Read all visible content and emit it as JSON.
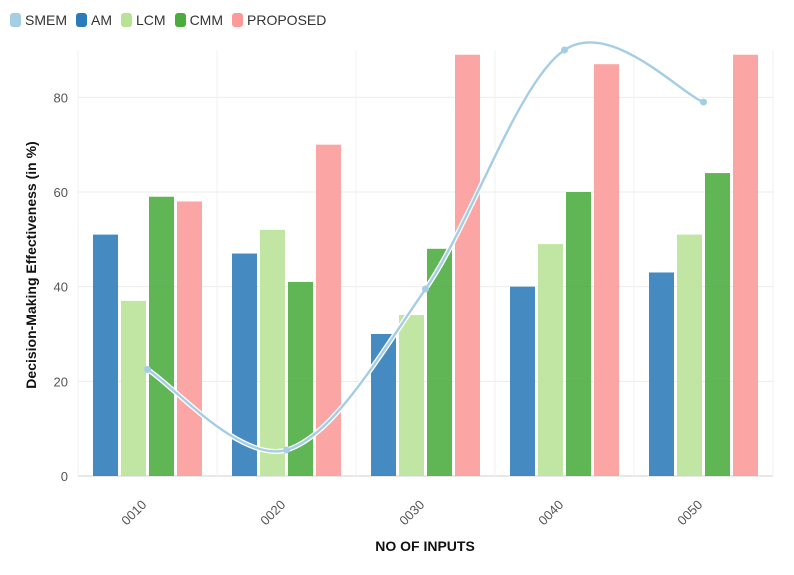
{
  "chart_data": {
    "type": "bar",
    "title": "",
    "xlabel": "NO OF INPUTS",
    "ylabel": "Decision-Making Effectiveness (in %)",
    "ylim": [
      0,
      90
    ],
    "yticks": [
      0,
      20,
      40,
      60,
      80
    ],
    "grid": true,
    "legend_position": "top-left",
    "categories": [
      "0010",
      "0020",
      "0030",
      "0040",
      "0050"
    ],
    "series": [
      {
        "name": "AM",
        "type": "bar",
        "color": "#2b7bba",
        "values": [
          51,
          47,
          30,
          40,
          43
        ]
      },
      {
        "name": "LCM",
        "type": "bar",
        "color": "#b8e296",
        "values": [
          37,
          52,
          34,
          49,
          51
        ]
      },
      {
        "name": "CMM",
        "type": "bar",
        "color": "#4aab3e",
        "values": [
          59,
          41,
          48,
          60,
          64
        ]
      },
      {
        "name": "PROPOSED",
        "type": "bar",
        "color": "#fb9a99",
        "values": [
          58,
          70,
          89,
          87,
          89
        ]
      }
    ],
    "line_series": {
      "name": "SMEM",
      "type": "line",
      "color": "#a6cee3",
      "values": [
        22.5,
        5.5,
        39.5,
        90,
        79
      ]
    },
    "legend_order": [
      "SMEM",
      "AM",
      "LCM",
      "CMM",
      "PROPOSED"
    ]
  }
}
